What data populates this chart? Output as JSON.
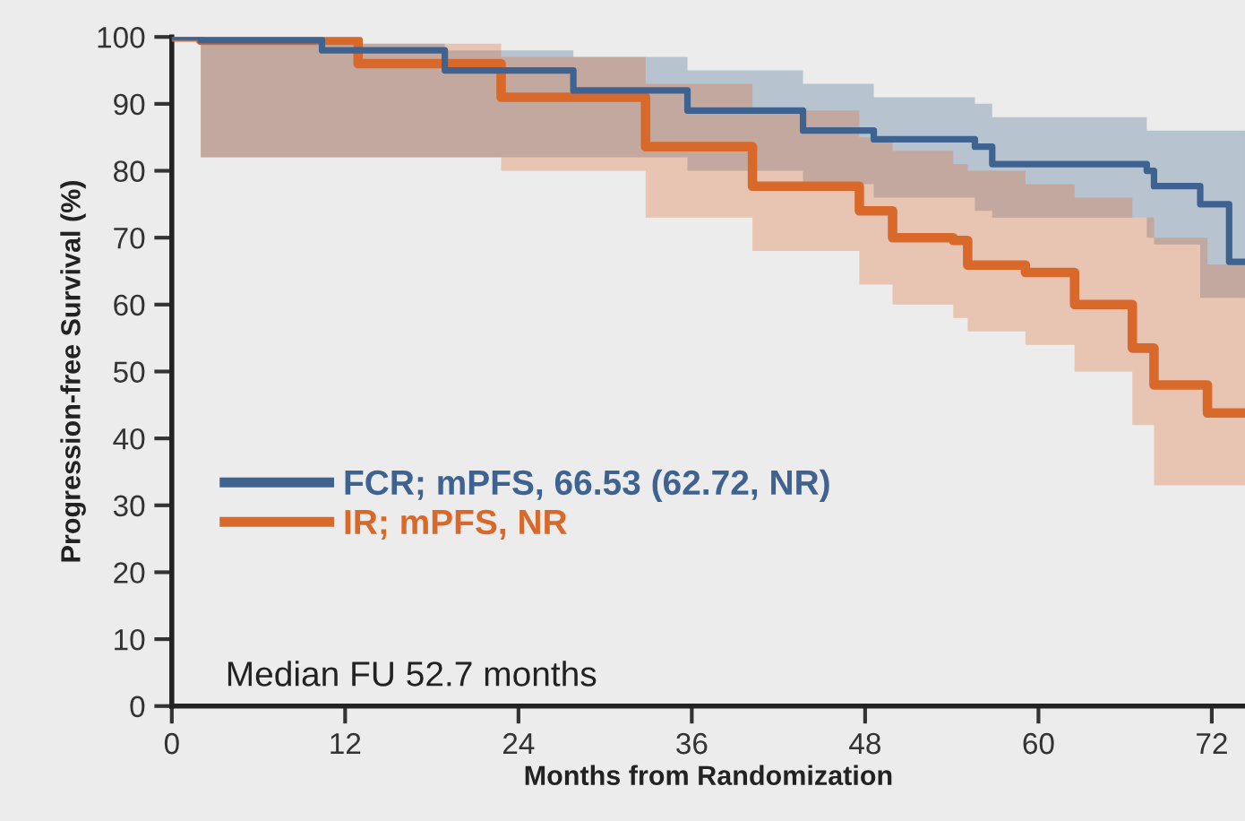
{
  "chart_data": {
    "type": "step",
    "xlabel": "Months from Randomization",
    "ylabel": "Progression-free Survival (%)",
    "xlim": [
      0,
      74.3
    ],
    "xticks": [
      0,
      12,
      24,
      36,
      48,
      60,
      72
    ],
    "ylim": [
      0,
      100
    ],
    "yticks": [
      0,
      10,
      20,
      30,
      40,
      50,
      60,
      70,
      80,
      90,
      100
    ],
    "grid": false,
    "legend": "left",
    "marker": "none",
    "line_style": "solid",
    "series": [
      {
        "name": "FCR; mPFS, 66.53 (62.72, NR)",
        "color": "#3f6390",
        "x": [
          0,
          2,
          10.4,
          18.9,
          27.8,
          35.7,
          43.7,
          48.6,
          55.6,
          56.8,
          67.5,
          68,
          71.2,
          73.2,
          74.3
        ],
        "values": [
          100,
          99.5,
          98,
          95,
          92,
          89,
          86,
          84.7,
          83.6,
          81,
          80,
          77.7,
          75,
          66.4,
          66.4
        ],
        "lower": [
          100,
          82,
          82,
          82,
          82,
          80,
          78,
          76,
          74,
          73,
          70,
          69,
          61,
          61,
          61
        ],
        "upper": [
          100,
          100,
          99,
          98,
          97,
          95,
          93,
          91,
          90,
          88,
          86,
          86,
          86,
          86,
          86
        ]
      },
      {
        "name": "IR; mPFS, NR",
        "color": "#d9692a",
        "x": [
          0,
          2,
          12.9,
          22.8,
          32.8,
          40.2,
          47.6,
          49.9,
          54.1,
          55.1,
          59.1,
          62.5,
          66.5,
          68,
          71.7,
          74.3
        ],
        "values": [
          100,
          99.5,
          96,
          91,
          83.6,
          77.7,
          74,
          70,
          69.6,
          65.9,
          64.8,
          60,
          53.5,
          48,
          43.8,
          43.8
        ],
        "lower": [
          100,
          82,
          82,
          80,
          73,
          68,
          63,
          60,
          58,
          56,
          54,
          50,
          42,
          33,
          33,
          33
        ],
        "upper": [
          100,
          100,
          99,
          97,
          93,
          89,
          85,
          83,
          81,
          80,
          78,
          76,
          73,
          70,
          66,
          66
        ]
      }
    ],
    "annotations": [
      "Median FU 52.7 months"
    ]
  }
}
